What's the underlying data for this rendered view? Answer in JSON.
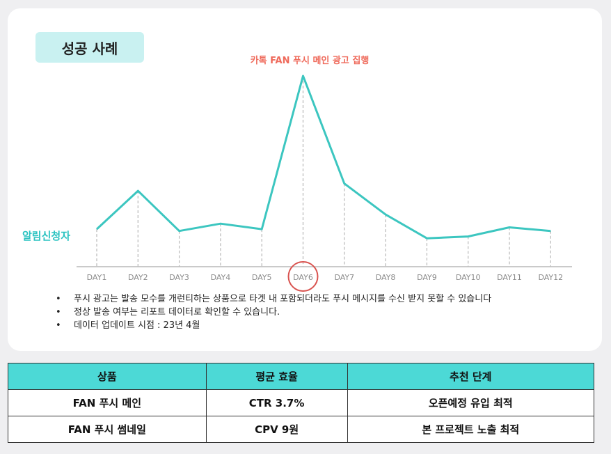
{
  "badge": {
    "label": "성공 사례"
  },
  "chart_data": {
    "type": "line",
    "title": "",
    "annotation": "카톡 FAN 푸시 메인 광고 집행",
    "ylabel": "알림신청자",
    "xlabel": "",
    "categories": [
      "DAY1",
      "DAY2",
      "DAY3",
      "DAY4",
      "DAY5",
      "DAY6",
      "DAY7",
      "DAY8",
      "DAY9",
      "DAY10",
      "DAY11",
      "DAY12"
    ],
    "values": [
      16,
      37,
      15,
      19,
      16,
      100,
      41,
      24,
      11,
      12,
      17,
      15
    ],
    "ylim": [
      0,
      100
    ],
    "highlight_category": "DAY6",
    "grid": false,
    "colors": {
      "line": "#3cc6c0",
      "annotation": "#ef6a5b",
      "ylabel": "#2cc3c1",
      "highlight": "#d9534f"
    }
  },
  "notes": [
    "푸시 광고는 발송 모수를 개런티하는 상품으로 타겟 내 포함되더라도 푸시 메시지를 수신 받지 못할 수 있습니다",
    "정상 발송 여부는 리포트 데이터로 확인할 수 있습니다.",
    "데이터 업데이트 시점  : 23년 4월"
  ],
  "table": {
    "headers": [
      "상품",
      "평균 효율",
      "추천 단계"
    ],
    "rows": [
      [
        "FAN 푸시 메인",
        "CTR 3.7%",
        "오픈예정 유입 최적"
      ],
      [
        "FAN 푸시 썸네일",
        "CPV 9원",
        "본 프로젝트 노출 최적"
      ]
    ]
  }
}
